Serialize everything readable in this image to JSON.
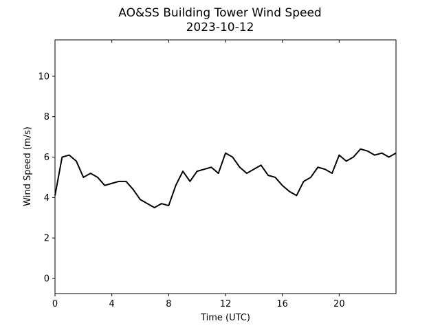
{
  "chart_data": {
    "type": "line",
    "title": "AO&SS Building Tower Wind Speed",
    "subtitle": "2023-10-12",
    "xlabel": "Time (UTC)",
    "ylabel": "Wind Speed (m/s)",
    "xlim": [
      0,
      24
    ],
    "ylim": [
      -0.75,
      11.8
    ],
    "xticks": [
      0,
      4,
      8,
      12,
      16,
      20
    ],
    "yticks": [
      0,
      2,
      4,
      6,
      8,
      10
    ],
    "grid": false,
    "series_color": "#000000",
    "series": [
      {
        "x": [
          0,
          0.5,
          1,
          1.5,
          2,
          2.5,
          3,
          3.5,
          4,
          4.5,
          5,
          5.5,
          6,
          6.5,
          7,
          7.5,
          8,
          8.5,
          9,
          9.5,
          10,
          10.5,
          11,
          11.5,
          12,
          12.5,
          13,
          13.5,
          14,
          14.5,
          15,
          15.5,
          16,
          16.5,
          17,
          17.5,
          18,
          18.5,
          19,
          19.5,
          20,
          20.5,
          21,
          21.5,
          22,
          22.5,
          23,
          23.5,
          24
        ],
        "y": [
          4.1,
          6.0,
          6.1,
          5.8,
          5.0,
          5.2,
          5.0,
          4.6,
          4.7,
          4.8,
          4.8,
          4.4,
          3.9,
          3.7,
          3.5,
          3.7,
          3.6,
          4.6,
          5.3,
          4.8,
          5.3,
          5.4,
          5.5,
          5.2,
          6.2,
          6.0,
          5.5,
          5.2,
          5.4,
          5.6,
          5.1,
          5.0,
          4.6,
          4.3,
          4.1,
          4.8,
          5.0,
          5.5,
          5.4,
          5.2,
          6.1,
          5.8,
          6.0,
          6.4,
          6.3,
          6.1,
          6.2,
          6.0,
          6.2
        ]
      }
    ]
  }
}
